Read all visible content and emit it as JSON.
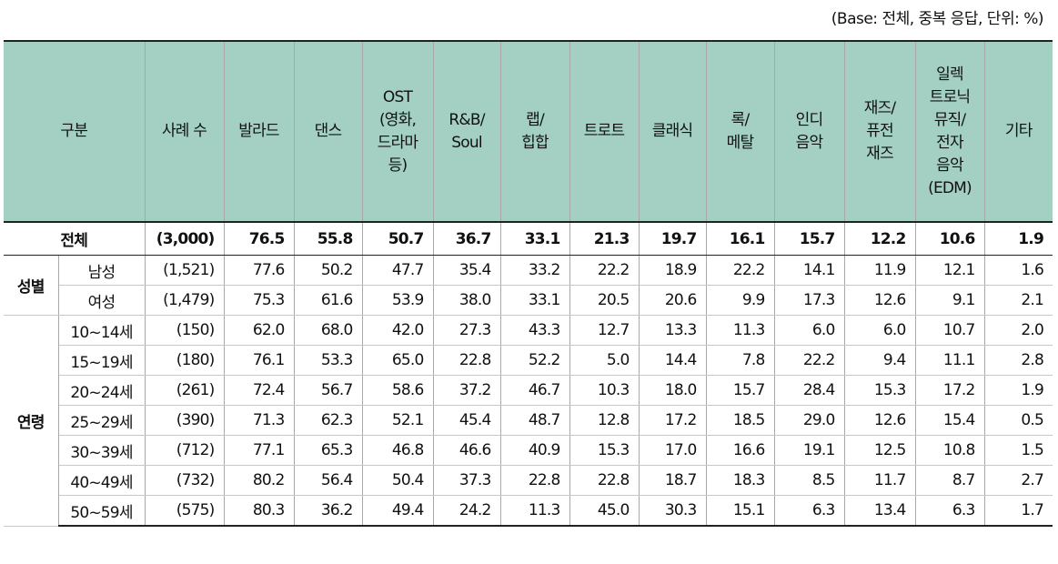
{
  "note": "(Base: 전체, 중복 응답, 단위: %)",
  "headers": [
    [
      "구분"
    ],
    [
      "사례 수"
    ],
    [
      "발라드"
    ],
    [
      "댄스"
    ],
    [
      "OST",
      "(영화,",
      "드라마",
      "등)"
    ],
    [
      "R&B/",
      "Soul"
    ],
    [
      "랩/",
      "힙합"
    ],
    [
      "트로트"
    ],
    [
      "클래식"
    ],
    [
      "록/",
      "메탈"
    ],
    [
      "인디",
      "음악"
    ],
    [
      "재즈/",
      "퓨전",
      "재즈"
    ],
    [
      "일렉",
      "트로닉",
      "뮤직/",
      "전자",
      "음악",
      "(EDM)"
    ],
    [
      "기타"
    ]
  ],
  "total": {
    "label": "전체",
    "n": "(3,000)",
    "values": [
      "76.5",
      "55.8",
      "50.7",
      "36.7",
      "33.1",
      "21.3",
      "19.7",
      "16.1",
      "15.7",
      "12.2",
      "10.6",
      "1.9"
    ]
  },
  "groups": [
    {
      "name": "성별",
      "rows": [
        {
          "label": "남성",
          "n": "(1,521)",
          "values": [
            "77.6",
            "50.2",
            "47.7",
            "35.4",
            "33.2",
            "22.2",
            "18.9",
            "22.2",
            "14.1",
            "11.9",
            "12.1",
            "1.6"
          ]
        },
        {
          "label": "여성",
          "n": "(1,479)",
          "values": [
            "75.3",
            "61.6",
            "53.9",
            "38.0",
            "33.1",
            "20.5",
            "20.6",
            "9.9",
            "17.3",
            "12.6",
            "9.1",
            "2.1"
          ]
        }
      ]
    },
    {
      "name": "연령",
      "rows": [
        {
          "label": "10~14세",
          "n": "(150)",
          "values": [
            "62.0",
            "68.0",
            "42.0",
            "27.3",
            "43.3",
            "12.7",
            "13.3",
            "11.3",
            "6.0",
            "6.0",
            "10.7",
            "2.0"
          ]
        },
        {
          "label": "15~19세",
          "n": "(180)",
          "values": [
            "76.1",
            "53.3",
            "65.0",
            "22.8",
            "52.2",
            "5.0",
            "14.4",
            "7.8",
            "22.2",
            "9.4",
            "11.1",
            "2.8"
          ]
        },
        {
          "label": "20~24세",
          "n": "(261)",
          "values": [
            "72.4",
            "56.7",
            "58.6",
            "37.2",
            "46.7",
            "10.3",
            "18.0",
            "15.7",
            "28.4",
            "15.3",
            "17.2",
            "1.9"
          ]
        },
        {
          "label": "25~29세",
          "n": "(390)",
          "values": [
            "71.3",
            "62.3",
            "52.1",
            "45.4",
            "48.7",
            "12.8",
            "17.2",
            "18.5",
            "29.0",
            "12.6",
            "15.4",
            "0.5"
          ]
        },
        {
          "label": "30~39세",
          "n": "(712)",
          "values": [
            "77.1",
            "65.3",
            "46.8",
            "46.6",
            "40.9",
            "15.3",
            "17.0",
            "16.6",
            "19.1",
            "12.5",
            "10.8",
            "1.5"
          ]
        },
        {
          "label": "40~49세",
          "n": "(732)",
          "values": [
            "80.2",
            "56.4",
            "50.4",
            "37.3",
            "22.8",
            "22.8",
            "18.7",
            "18.3",
            "8.5",
            "11.7",
            "8.7",
            "2.7"
          ]
        },
        {
          "label": "50~59세",
          "n": "(575)",
          "values": [
            "80.3",
            "36.2",
            "49.4",
            "24.2",
            "11.3",
            "45.0",
            "30.3",
            "15.1",
            "6.3",
            "13.4",
            "6.3",
            "1.7"
          ]
        }
      ]
    }
  ]
}
